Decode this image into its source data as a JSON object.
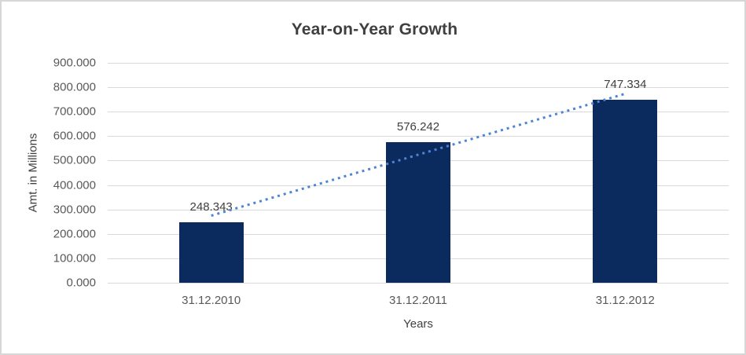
{
  "chart_data": {
    "type": "bar",
    "title": "Year-on-Year Growth",
    "xlabel": "Years",
    "ylabel": "Amt. in Millions",
    "categories": [
      "31.12.2010",
      "31.12.2011",
      "31.12.2012"
    ],
    "values": [
      248.343,
      576.242,
      747.334
    ],
    "value_labels": [
      "248.343",
      "576.242",
      "747.334"
    ],
    "ytick_values": [
      0,
      100,
      200,
      300,
      400,
      500,
      600,
      700,
      800,
      900
    ],
    "ytick_labels": [
      "0.000",
      "100.000",
      "200.000",
      "300.000",
      "400.000",
      "500.000",
      "600.000",
      "700.000",
      "800.000",
      "900.000"
    ],
    "ylim": [
      0,
      900
    ],
    "grid": true,
    "legend": "none",
    "trendline": {
      "type": "linear",
      "style": "dotted"
    },
    "colors": {
      "bar": "#0b2a5e",
      "trendline": "#4e85d2",
      "gridline": "#d9d9d9",
      "title_text": "#3f3f3f",
      "axis_text": "#595959",
      "label_text": "#404040",
      "border": "#d7d7d7",
      "background": "#ffffff"
    }
  }
}
